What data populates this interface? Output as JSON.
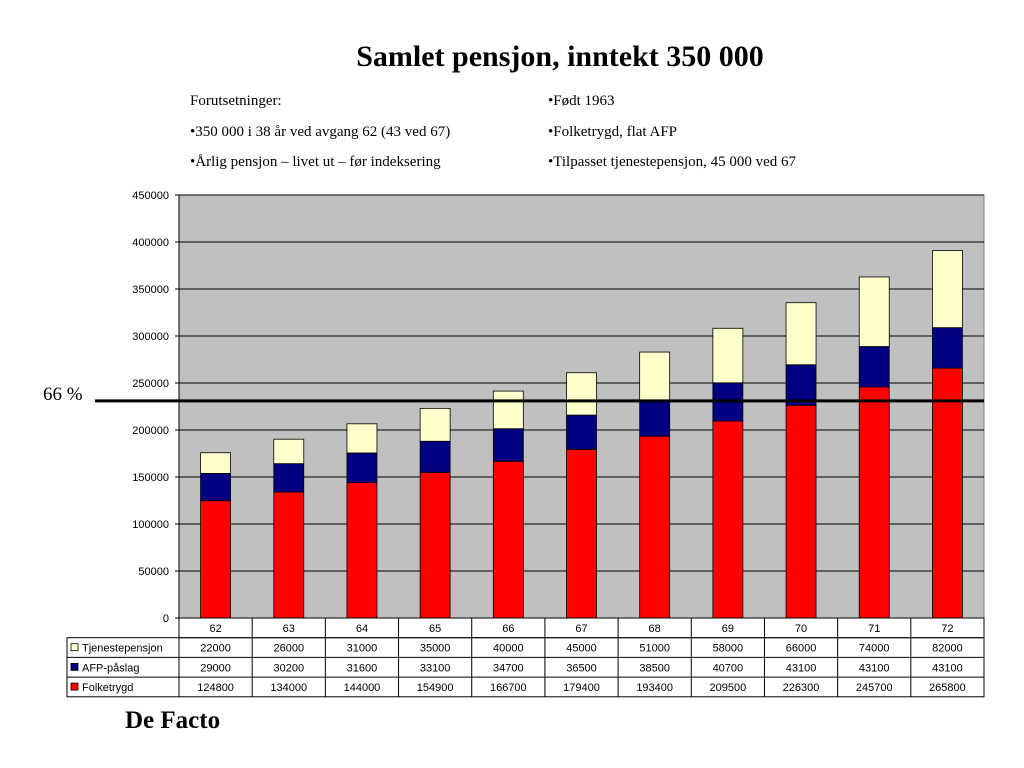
{
  "title": "Samlet pensjon, inntekt 350 000",
  "assumptions": {
    "left": [
      "Forutsetninger:",
      "•350 000 i 38 år ved avgang 62 (43 ved 67)",
      "•Årlig pensjon – livet ut – før indeksering"
    ],
    "right": [
      "•Født 1963",
      "•Folketrygd, flat AFP",
      "•Tilpasset tjenestepensjon, 45 000 ved 67"
    ]
  },
  "reference_line": {
    "label": "66 %",
    "value": 231000
  },
  "footer": "De Facto",
  "colors": {
    "Folketrygd": "#ff0000",
    "AFP-påslag": "#000080",
    "Tjenestepensjon": "#ffffcc",
    "plot_background": "#c0c0c0"
  },
  "chart_data": {
    "type": "bar",
    "stacked": true,
    "title": "Samlet pensjon, inntekt 350 000",
    "categories": [
      "62",
      "63",
      "64",
      "65",
      "66",
      "67",
      "68",
      "69",
      "70",
      "71",
      "72"
    ],
    "ylim": [
      0,
      450000
    ],
    "yticks": [
      "0",
      "50000",
      "100000",
      "150000",
      "200000",
      "250000",
      "300000",
      "350000",
      "400000",
      "450000"
    ],
    "grid": true,
    "legend": "data-table-left",
    "series": [
      {
        "name": "Folketrygd",
        "values": [
          124800,
          134000,
          144000,
          154900,
          166700,
          179400,
          193400,
          209500,
          226300,
          245700,
          265800
        ]
      },
      {
        "name": "AFP-påslag",
        "values": [
          29000,
          30200,
          31600,
          33100,
          34700,
          36500,
          38500,
          40700,
          43100,
          43100,
          43100
        ]
      },
      {
        "name": "Tjenestepensjon",
        "values": [
          22000,
          26000,
          31000,
          35000,
          40000,
          45000,
          51000,
          58000,
          66000,
          74000,
          82000
        ]
      }
    ],
    "table_row_order": [
      "Tjenestepensjon",
      "AFP-påslag",
      "Folketrygd"
    ]
  }
}
